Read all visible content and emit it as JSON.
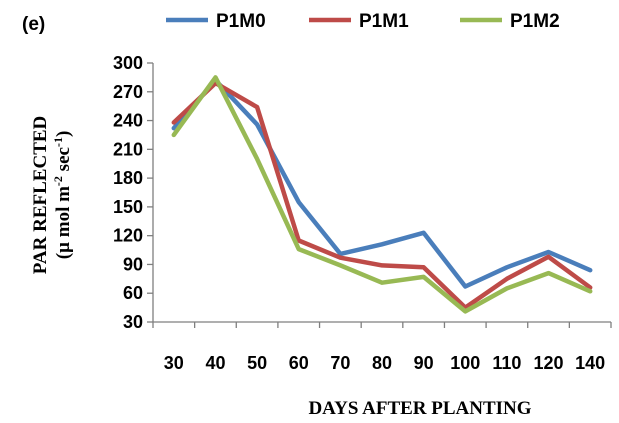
{
  "chart_data": {
    "type": "line",
    "panel_label": "(e)",
    "xlabel": "DAYS AFTER PLANTING",
    "ylabel_line1": "PAR REFLECTED",
    "ylabel_line2_parts": [
      "(µ mol m",
      "-2",
      " sec",
      "-1",
      ")"
    ],
    "categories": [
      "30",
      "40",
      "50",
      "60",
      "70",
      "80",
      "90",
      "100",
      "110",
      "120",
      "140"
    ],
    "ylim": [
      30,
      300
    ],
    "yticks": [
      30,
      60,
      90,
      120,
      150,
      180,
      210,
      240,
      270,
      300
    ],
    "grid": false,
    "legend_position": "top",
    "series": [
      {
        "name": "P1M0",
        "color": "#4a7ebb",
        "values": [
          232,
          282,
          236,
          155,
          101,
          111,
          123,
          67,
          87,
          103,
          84
        ]
      },
      {
        "name": "P1M1",
        "color": "#be4b48",
        "values": [
          238,
          279,
          254,
          115,
          97,
          89,
          87,
          45,
          75,
          98,
          66
        ]
      },
      {
        "name": "P1M2",
        "color": "#98b954",
        "values": [
          225,
          285,
          200,
          106,
          89,
          71,
          77,
          41,
          65,
          81,
          62
        ]
      }
    ]
  }
}
